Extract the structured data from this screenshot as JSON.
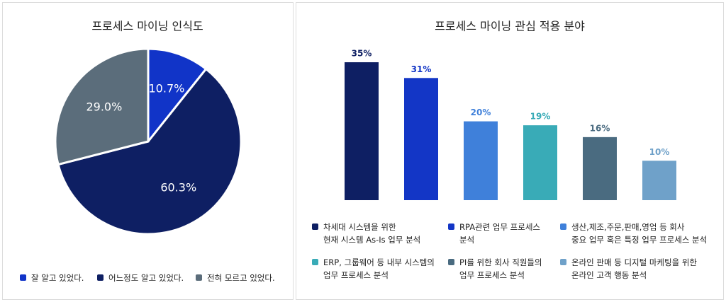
{
  "chart_data": [
    {
      "type": "pie",
      "title": "프로세스 마이닝 인식도",
      "categories": [
        "잘 알고 있었다.",
        "어느정도 알고 있었다.",
        "전혀 모르고 있었다."
      ],
      "values": [
        10.7,
        60.3,
        29.0
      ],
      "value_labels": [
        "10.7%",
        "60.3%",
        "29.0%"
      ],
      "colors": [
        "#1134c8",
        "#0e1f63",
        "#5b6d7b"
      ]
    },
    {
      "type": "bar",
      "title": "프로세스 마이닝 관심 적용 분야",
      "categories": [
        "차세대 시스템을 위한\n현재 시스템 As-Is 업무 분석",
        "RPA관련 업무 프로세스\n분석",
        "생산,제조,주문,판매,영업 등 회사\n중요 업무 혹은 특정 업무 프로세스 분석",
        "ERP, 그룹웨어 등 내부 시스템의\n업무 프로세스 분석",
        "PI를 위한 회사 직원들의\n업무 프로세스 분석",
        "온라인 판매 등 디지털 마케팅을 위한\n온라인 고객 행동 분석"
      ],
      "values": [
        35,
        31,
        20,
        19,
        16,
        10
      ],
      "value_labels": [
        "35%",
        "31%",
        "20%",
        "19%",
        "16%",
        "10%"
      ],
      "colors": [
        "#0e1f63",
        "#1336c6",
        "#3f80da",
        "#39abb7",
        "#4a6b80",
        "#6fa1c9"
      ]
    }
  ]
}
